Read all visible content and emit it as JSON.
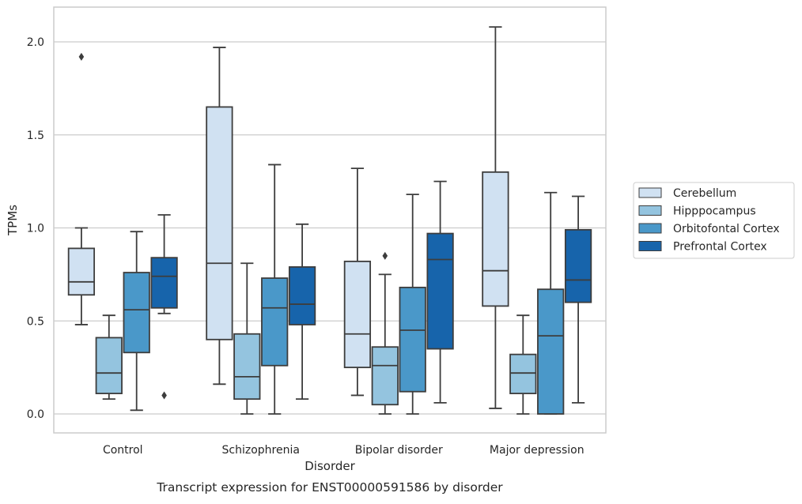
{
  "chart_data": {
    "type": "box",
    "xlabel": "Disorder",
    "ylabel": "TPMs",
    "caption": "Transcript expression for ENST00000591586 by disorder",
    "ylim": [
      -0.1,
      2.2
    ],
    "yticks": [
      0.0,
      0.5,
      1.0,
      1.5,
      2.0
    ],
    "ytick_labels": [
      "0.0",
      "0.5",
      "1.0",
      "1.5",
      "2.0"
    ],
    "grid": "horizontal",
    "legend_position": "right",
    "categories": [
      "Control",
      "Schizophrenia",
      "Bipolar disorder",
      "Major depression"
    ],
    "series": [
      {
        "name": "Cerebellum",
        "color": "#d0e1f2",
        "boxes": [
          {
            "whislo": 0.48,
            "q1": 0.64,
            "med": 0.71,
            "q3": 0.89,
            "whishi": 1.0,
            "fliers": [
              1.92
            ]
          },
          {
            "whislo": 0.16,
            "q1": 0.4,
            "med": 0.81,
            "q3": 1.65,
            "whishi": 1.97,
            "fliers": []
          },
          {
            "whislo": 0.1,
            "q1": 0.25,
            "med": 0.43,
            "q3": 0.82,
            "whishi": 1.32,
            "fliers": []
          },
          {
            "whislo": 0.03,
            "q1": 0.58,
            "med": 0.77,
            "q3": 1.3,
            "whishi": 2.08,
            "fliers": []
          }
        ]
      },
      {
        "name": "Hipppocampus",
        "color": "#94c4df",
        "boxes": [
          {
            "whislo": 0.08,
            "q1": 0.11,
            "med": 0.22,
            "q3": 0.41,
            "whishi": 0.53,
            "fliers": []
          },
          {
            "whislo": 0.0,
            "q1": 0.08,
            "med": 0.2,
            "q3": 0.43,
            "whishi": 0.81,
            "fliers": []
          },
          {
            "whislo": 0.0,
            "q1": 0.05,
            "med": 0.26,
            "q3": 0.36,
            "whishi": 0.75,
            "fliers": [
              0.85
            ]
          },
          {
            "whislo": 0.0,
            "q1": 0.11,
            "med": 0.22,
            "q3": 0.32,
            "whishi": 0.53,
            "fliers": []
          }
        ]
      },
      {
        "name": "Orbitofontal Cortex",
        "color": "#4a98c9",
        "boxes": [
          {
            "whislo": 0.02,
            "q1": 0.33,
            "med": 0.56,
            "q3": 0.76,
            "whishi": 0.98,
            "fliers": []
          },
          {
            "whislo": 0.0,
            "q1": 0.26,
            "med": 0.57,
            "q3": 0.73,
            "whishi": 1.34,
            "fliers": []
          },
          {
            "whislo": 0.0,
            "q1": 0.12,
            "med": 0.45,
            "q3": 0.68,
            "whishi": 1.18,
            "fliers": []
          },
          {
            "whislo": 0.0,
            "q1": 0.0,
            "med": 0.42,
            "q3": 0.67,
            "whishi": 1.19,
            "fliers": []
          }
        ]
      },
      {
        "name": "Prefrontal Cortex",
        "color": "#1764ab",
        "boxes": [
          {
            "whislo": 0.54,
            "q1": 0.57,
            "med": 0.74,
            "q3": 0.84,
            "whishi": 1.07,
            "fliers": [
              0.1
            ]
          },
          {
            "whislo": 0.08,
            "q1": 0.48,
            "med": 0.59,
            "q3": 0.79,
            "whishi": 1.02,
            "fliers": []
          },
          {
            "whislo": 0.06,
            "q1": 0.35,
            "med": 0.83,
            "q3": 0.97,
            "whishi": 1.25,
            "fliers": []
          },
          {
            "whislo": 0.06,
            "q1": 0.6,
            "med": 0.72,
            "q3": 0.99,
            "whishi": 1.17,
            "fliers": []
          }
        ]
      }
    ]
  }
}
